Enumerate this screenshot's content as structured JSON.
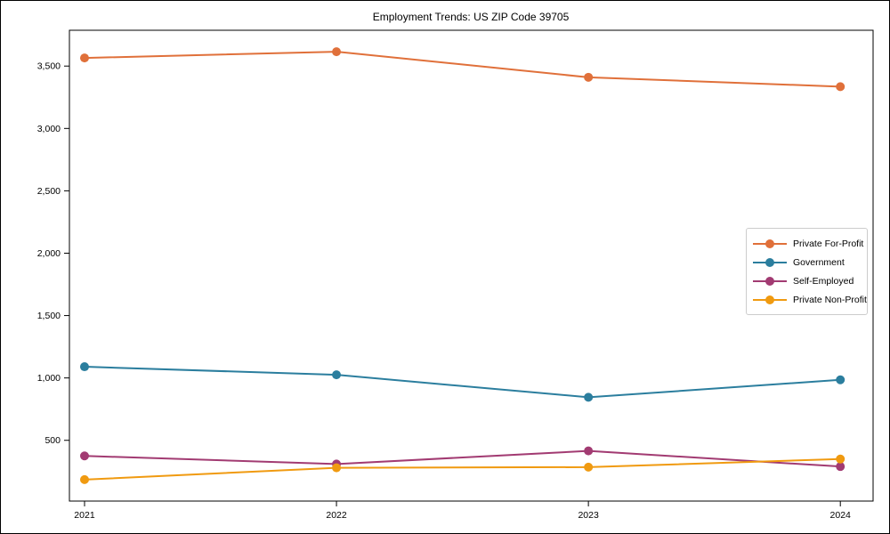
{
  "chart_data": {
    "type": "line",
    "title": "Employment Trends: US ZIP Code 39705",
    "xlabel": "",
    "ylabel": "",
    "x": [
      2021,
      2022,
      2023,
      2024
    ],
    "xtick_labels": [
      "2021",
      "2022",
      "2023",
      "2024"
    ],
    "yticks": [
      500,
      1000,
      1500,
      2000,
      2500,
      3000,
      3500
    ],
    "ytick_labels": [
      "500",
      "1,000",
      "1,500",
      "2,000",
      "2,500",
      "3,000",
      "3,500"
    ],
    "ylim": [
      13,
      3787
    ],
    "xlim": [
      2020.94,
      2024.13
    ],
    "grid": false,
    "legend_position": "center right",
    "marker": "circle",
    "series": [
      {
        "name": "Private For-Profit",
        "color": "#E0703A",
        "values": [
          3565,
          3615,
          3410,
          3335
        ]
      },
      {
        "name": "Government",
        "color": "#2B7E9E",
        "values": [
          1090,
          1025,
          845,
          985
        ]
      },
      {
        "name": "Self-Employed",
        "color": "#A23B72",
        "values": [
          375,
          310,
          415,
          290
        ]
      },
      {
        "name": "Private Non-Profit",
        "color": "#F09A10",
        "values": [
          185,
          280,
          285,
          350
        ]
      }
    ],
    "colors": {
      "axis": "#000000",
      "background": "#FFFFFF",
      "legend_border": "#CCCCCC"
    }
  }
}
